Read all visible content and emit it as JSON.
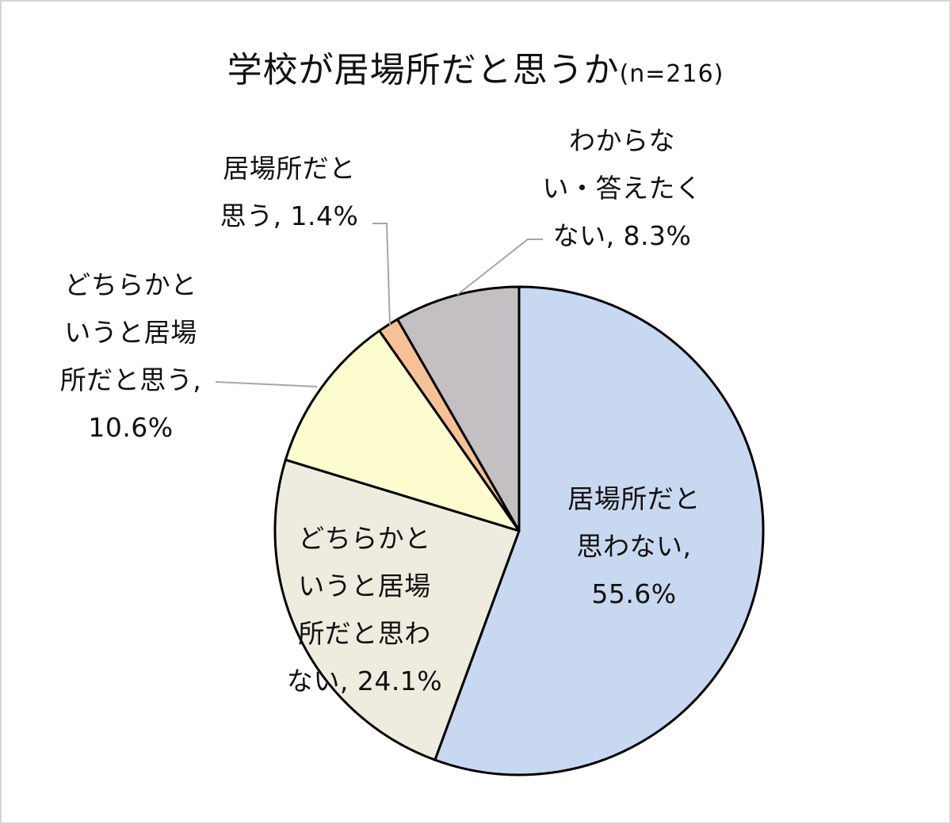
{
  "chart_data": {
    "type": "pie",
    "title": "学校が居場所だと思うか",
    "subtitle": "(n=216)",
    "n": 216,
    "start_angle_deg": 0,
    "direction": "clockwise",
    "slices": [
      {
        "label": "居場所だと思わない",
        "value": 55.6,
        "color": "#c9d8f1",
        "display": "居場所だと\n思わない,\n55.6%"
      },
      {
        "label": "どちらかというと居場所だと思わない",
        "value": 24.1,
        "color": "#eeecdf",
        "display": "どちらかと\nいうと居場\n所だと思わ\nない, 24.1%"
      },
      {
        "label": "どちらかというと居場所だと思う",
        "value": 10.6,
        "color": "#fefdd0",
        "display": "どちらかと\nいうと居場\n所だと思う,\n10.6%"
      },
      {
        "label": "居場所だと思う",
        "value": 1.4,
        "color": "#f7c196",
        "display": "居場所だと\n思う, 1.4%"
      },
      {
        "label": "わからない・答えたくない",
        "value": 8.3,
        "color": "#c3bfc3",
        "display": "わからな\nい・答えたく\nない, 8.3%"
      }
    ],
    "legend": "none (data labels with leader lines)"
  },
  "title": {
    "main": "学校が居場所だと思うか",
    "n": "(n=216)"
  },
  "labels": {
    "s0": "居場所だと\n思わない,\n55.6%",
    "s1": "どちらかと\nいうと居場\n所だと思わ\nない, 24.1%",
    "s2": "どちらかと\nいうと居場\n所だと思う,\n10.6%",
    "s3": "居場所だと\n思う, 1.4%",
    "s4": "わからな\nい・答えたく\nない, 8.3%"
  }
}
